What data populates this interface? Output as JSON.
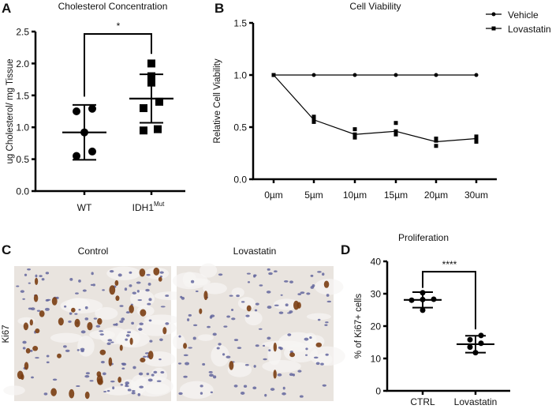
{
  "panels": {
    "A": "A",
    "B": "B",
    "C": "C",
    "D": "D"
  },
  "chart_data": [
    {
      "panel": "A",
      "type": "scatter",
      "title": "Cholesterol Concentration",
      "ylabel": "ug Cholesterol/ mg Tissue",
      "ylim": [
        0,
        2.5
      ],
      "yticks": [
        "0.0",
        "0.5",
        "1.0",
        "1.5",
        "2.0",
        "2.5"
      ],
      "categories": [
        "WT",
        "IDH1"
      ],
      "category_superscripts": [
        "",
        "Mut"
      ],
      "groups": [
        {
          "category": "WT",
          "marker": "circle",
          "points": [
            1.25,
            1.29,
            0.92,
            0.55,
            0.62
          ],
          "mean": 0.92,
          "err_low": 0.49,
          "err_high": 1.35
        },
        {
          "category": "IDH1Mut",
          "marker": "square",
          "points": [
            2.0,
            1.8,
            1.7,
            1.4,
            1.3,
            0.97,
            0.95
          ],
          "mean": 1.45,
          "err_low": 1.07,
          "err_high": 1.83
        }
      ],
      "significance": "*"
    },
    {
      "panel": "B",
      "type": "line",
      "title": "Cell Viability",
      "ylabel": "Relative Cell Viability",
      "ylim": [
        0,
        1.5
      ],
      "yticks": [
        "0.0",
        "0.5",
        "1.0",
        "1.5"
      ],
      "categories": [
        "0µm",
        "5µm",
        "10µm",
        "15µm",
        "20µm",
        "30um"
      ],
      "legend_position": "top-right",
      "series": [
        {
          "name": "Vehicle",
          "marker": "circle",
          "values": [
            1.0,
            1.0,
            1.0,
            1.0,
            1.0,
            1.0
          ]
        },
        {
          "name": "Lovastatin",
          "marker": "square",
          "values": [
            1.0,
            0.57,
            0.43,
            0.46,
            0.36,
            0.39
          ],
          "replicates": [
            [
              1.0
            ],
            [
              0.55,
              0.58,
              0.6
            ],
            [
              0.4,
              0.43,
              0.48
            ],
            [
              0.43,
              0.46,
              0.54
            ],
            [
              0.32,
              0.37,
              0.39
            ],
            [
              0.36,
              0.38,
              0.41
            ]
          ]
        }
      ]
    },
    {
      "panel": "D",
      "type": "scatter",
      "title": "Proliferation",
      "ylabel": "% of Ki67+ cells",
      "ylim": [
        0,
        40
      ],
      "yticks": [
        "0",
        "10",
        "20",
        "30",
        "40"
      ],
      "categories": [
        "CTRL",
        "Lovastatin"
      ],
      "groups": [
        {
          "category": "CTRL",
          "points": [
            30.3,
            28.0,
            28.2,
            28.3,
            24.9
          ],
          "mean": 28.1,
          "err_low": 25.7,
          "err_high": 30.5
        },
        {
          "category": "Lovastatin",
          "points": [
            17.1,
            15.8,
            13.5,
            14.7,
            11.8
          ],
          "mean": 14.4,
          "err_low": 11.8,
          "err_high": 17.0
        }
      ],
      "significance": "****"
    }
  ],
  "micrographs": {
    "row_label": "Ki67",
    "columns": [
      "Control",
      "Lovastatin"
    ],
    "colors": {
      "background": "#e9e4df",
      "brown_nuclei": "#7a3d12",
      "blue_nuclei": "#5a5e98"
    }
  }
}
